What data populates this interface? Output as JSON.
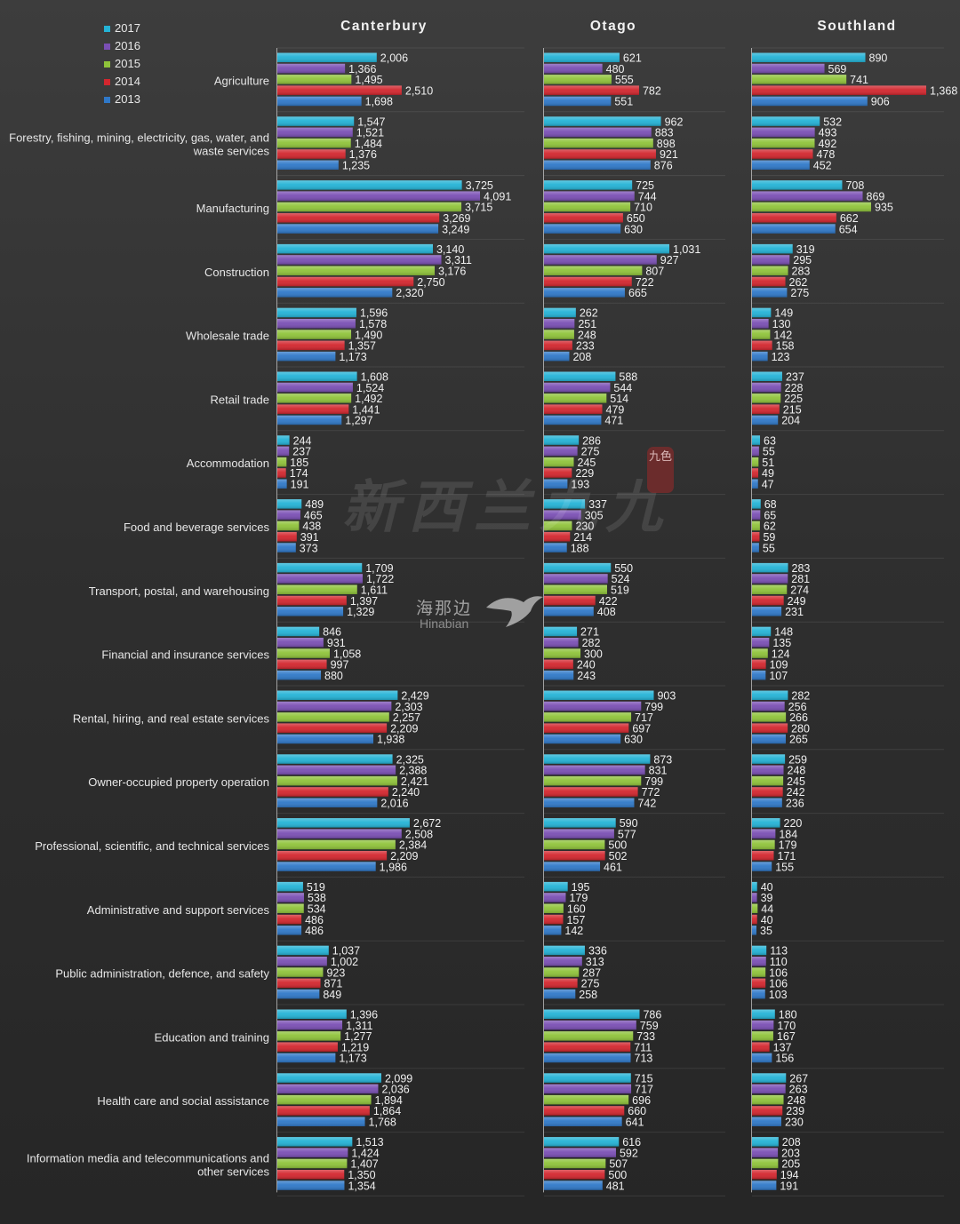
{
  "chart_data": {
    "type": "bar",
    "orientation": "horizontal",
    "grid": false,
    "legend_placement": "top-left",
    "legend": [
      {
        "label": "2017",
        "color": "#24b3d6"
      },
      {
        "label": "2016",
        "color": "#7a4fb4"
      },
      {
        "label": "2015",
        "color": "#8fc33a"
      },
      {
        "label": "2014",
        "color": "#d3262e"
      },
      {
        "label": "2013",
        "color": "#2f78c8"
      }
    ],
    "regions": [
      "Canterbury",
      "Otago",
      "Southland"
    ],
    "categories": [
      "Agriculture",
      "Forestry, fishing, mining, electricity, gas, water, and waste services",
      "Manufacturing",
      "Construction",
      "Wholesale trade",
      "Retail trade",
      "Accommodation",
      "Food and beverage services",
      "Transport, postal, and warehousing",
      "Financial and insurance services",
      "Rental, hiring, and real estate services",
      "Owner-occupied property operation",
      "Professional, scientific, and technical services",
      "Administrative and support services",
      "Public administration, defence, and safety",
      "Education and training",
      "Health care and social assistance",
      "Information media and telecommunications and other services"
    ],
    "category_lines": [
      [
        "Agriculture"
      ],
      [
        "Forestry, fishing, mining, electricity, gas, water, and",
        "waste services"
      ],
      [
        "Manufacturing"
      ],
      [
        "Construction"
      ],
      [
        "Wholesale trade"
      ],
      [
        "Retail trade"
      ],
      [
        "Accommodation"
      ],
      [
        "Food and beverage services"
      ],
      [
        "Transport, postal, and warehousing"
      ],
      [
        "Financial and insurance services"
      ],
      [
        "Rental, hiring, and real estate services"
      ],
      [
        "Owner-occupied property operation"
      ],
      [
        "Professional, scientific, and technical services"
      ],
      [
        "Administrative and support services"
      ],
      [
        "Public administration, defence, and safety"
      ],
      [
        "Education and training"
      ],
      [
        "Health care and social assistance"
      ],
      [
        "Information media and telecommunications and",
        "other services"
      ]
    ],
    "series_order": [
      "2017",
      "2016",
      "2015",
      "2014",
      "2013"
    ],
    "values": {
      "Canterbury": [
        [
          2006,
          1366,
          1495,
          2510,
          1698
        ],
        [
          1547,
          1521,
          1484,
          1376,
          1235
        ],
        [
          3725,
          4091,
          3715,
          3269,
          3249
        ],
        [
          3140,
          3311,
          3176,
          2750,
          2320
        ],
        [
          1596,
          1578,
          1490,
          1357,
          1173
        ],
        [
          1608,
          1524,
          1492,
          1441,
          1297
        ],
        [
          244,
          237,
          185,
          174,
          191
        ],
        [
          489,
          465,
          438,
          391,
          373
        ],
        [
          1709,
          1722,
          1611,
          1397,
          1329
        ],
        [
          846,
          931,
          1058,
          997,
          880
        ],
        [
          2429,
          2303,
          2257,
          2209,
          1938
        ],
        [
          2325,
          2388,
          2421,
          2240,
          2016
        ],
        [
          2672,
          2508,
          2384,
          2209,
          1986
        ],
        [
          519,
          538,
          534,
          486,
          486
        ],
        [
          1037,
          1002,
          923,
          871,
          849
        ],
        [
          1396,
          1311,
          1277,
          1219,
          1173
        ],
        [
          2099,
          2036,
          1894,
          1864,
          1768
        ],
        [
          1513,
          1424,
          1407,
          1350,
          1354
        ]
      ],
      "Otago": [
        [
          621,
          480,
          555,
          782,
          551
        ],
        [
          962,
          883,
          898,
          921,
          876
        ],
        [
          725,
          744,
          710,
          650,
          630
        ],
        [
          1031,
          927,
          807,
          722,
          665
        ],
        [
          262,
          251,
          248,
          233,
          208
        ],
        [
          588,
          544,
          514,
          479,
          471
        ],
        [
          286,
          275,
          245,
          229,
          193
        ],
        [
          337,
          305,
          230,
          214,
          188
        ],
        [
          550,
          524,
          519,
          422,
          408
        ],
        [
          271,
          282,
          300,
          240,
          243
        ],
        [
          903,
          799,
          717,
          697,
          630
        ],
        [
          873,
          831,
          799,
          772,
          742
        ],
        [
          590,
          577,
          500,
          502,
          461
        ],
        [
          195,
          179,
          160,
          157,
          142
        ],
        [
          336,
          313,
          287,
          275,
          258
        ],
        [
          786,
          759,
          733,
          711,
          713
        ],
        [
          715,
          717,
          696,
          660,
          641
        ],
        [
          616,
          592,
          507,
          500,
          481
        ]
      ],
      "Southland": [
        [
          890,
          569,
          741,
          1368,
          906
        ],
        [
          532,
          493,
          492,
          478,
          452
        ],
        [
          708,
          869,
          935,
          662,
          654
        ],
        [
          319,
          295,
          283,
          262,
          275
        ],
        [
          149,
          130,
          142,
          158,
          123
        ],
        [
          237,
          228,
          225,
          215,
          204
        ],
        [
          63,
          55,
          51,
          49,
          47
        ],
        [
          68,
          65,
          62,
          59,
          55
        ],
        [
          283,
          281,
          274,
          249,
          231
        ],
        [
          148,
          135,
          124,
          109,
          107
        ],
        [
          282,
          256,
          266,
          280,
          265
        ],
        [
          259,
          248,
          245,
          242,
          236
        ],
        [
          220,
          184,
          179,
          171,
          155
        ],
        [
          40,
          39,
          44,
          40,
          35
        ],
        [
          113,
          110,
          106,
          106,
          103
        ],
        [
          180,
          170,
          167,
          137,
          156
        ],
        [
          267,
          263,
          248,
          239,
          230
        ],
        [
          208,
          203,
          205,
          194,
          191
        ]
      ]
    }
  },
  "watermark": {
    "chinese_text": "新西兰九九",
    "seal_text": "九色",
    "brand_cn": "海那边",
    "brand_en": "Hinabian"
  }
}
